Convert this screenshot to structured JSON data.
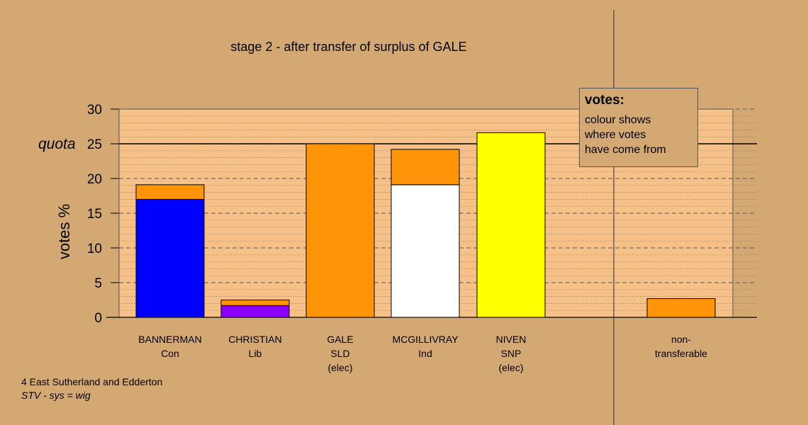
{
  "chart_data": {
    "type": "bar",
    "stacked": true,
    "title": "stage 2 - after transfer of surplus of GALE",
    "ylabel": "votes %",
    "ylim": [
      0,
      30
    ],
    "yticks": [
      0,
      5,
      10,
      15,
      20,
      25,
      30
    ],
    "quota": {
      "label": "quota",
      "value": 25
    },
    "grid": "dashed",
    "categories": [
      {
        "lines": [
          "BANNERMAN",
          "Con"
        ]
      },
      {
        "lines": [
          "CHRISTIAN",
          "Lib"
        ]
      },
      {
        "lines": [
          "GALE",
          "SLD",
          "(elec)"
        ]
      },
      {
        "lines": [
          "MCGILLIVRAY",
          "Ind"
        ]
      },
      {
        "lines": [
          "NIVEN",
          "SNP",
          "(elec)"
        ]
      },
      {
        "lines": [
          "non-",
          "transferable"
        ]
      }
    ],
    "series": [
      {
        "color": "#0000ff",
        "values": [
          17.0,
          0,
          0,
          0,
          0,
          0
        ]
      },
      {
        "color": "#8b00ff",
        "values": [
          0,
          1.7,
          0,
          0,
          0,
          0
        ]
      },
      {
        "color": "#ffffff",
        "values": [
          0,
          0,
          0,
          19.1,
          0,
          0
        ]
      },
      {
        "color": "#ffff00",
        "values": [
          0,
          0,
          0,
          0,
          26.6,
          0
        ]
      },
      {
        "color": "#ff9408",
        "values": [
          2.1,
          0.8,
          25.0,
          5.1,
          0,
          2.7
        ]
      }
    ]
  },
  "legend": {
    "title": "votes:",
    "lines": [
      "colour shows",
      "where votes",
      "have come from"
    ]
  },
  "footer": {
    "constituency": "4 East Sutherland and Edderton",
    "system": "STV - sys = wig"
  },
  "colors": {
    "background": "#d4a873",
    "plot_background": "#f6c189",
    "transfer": "#ff9408"
  }
}
